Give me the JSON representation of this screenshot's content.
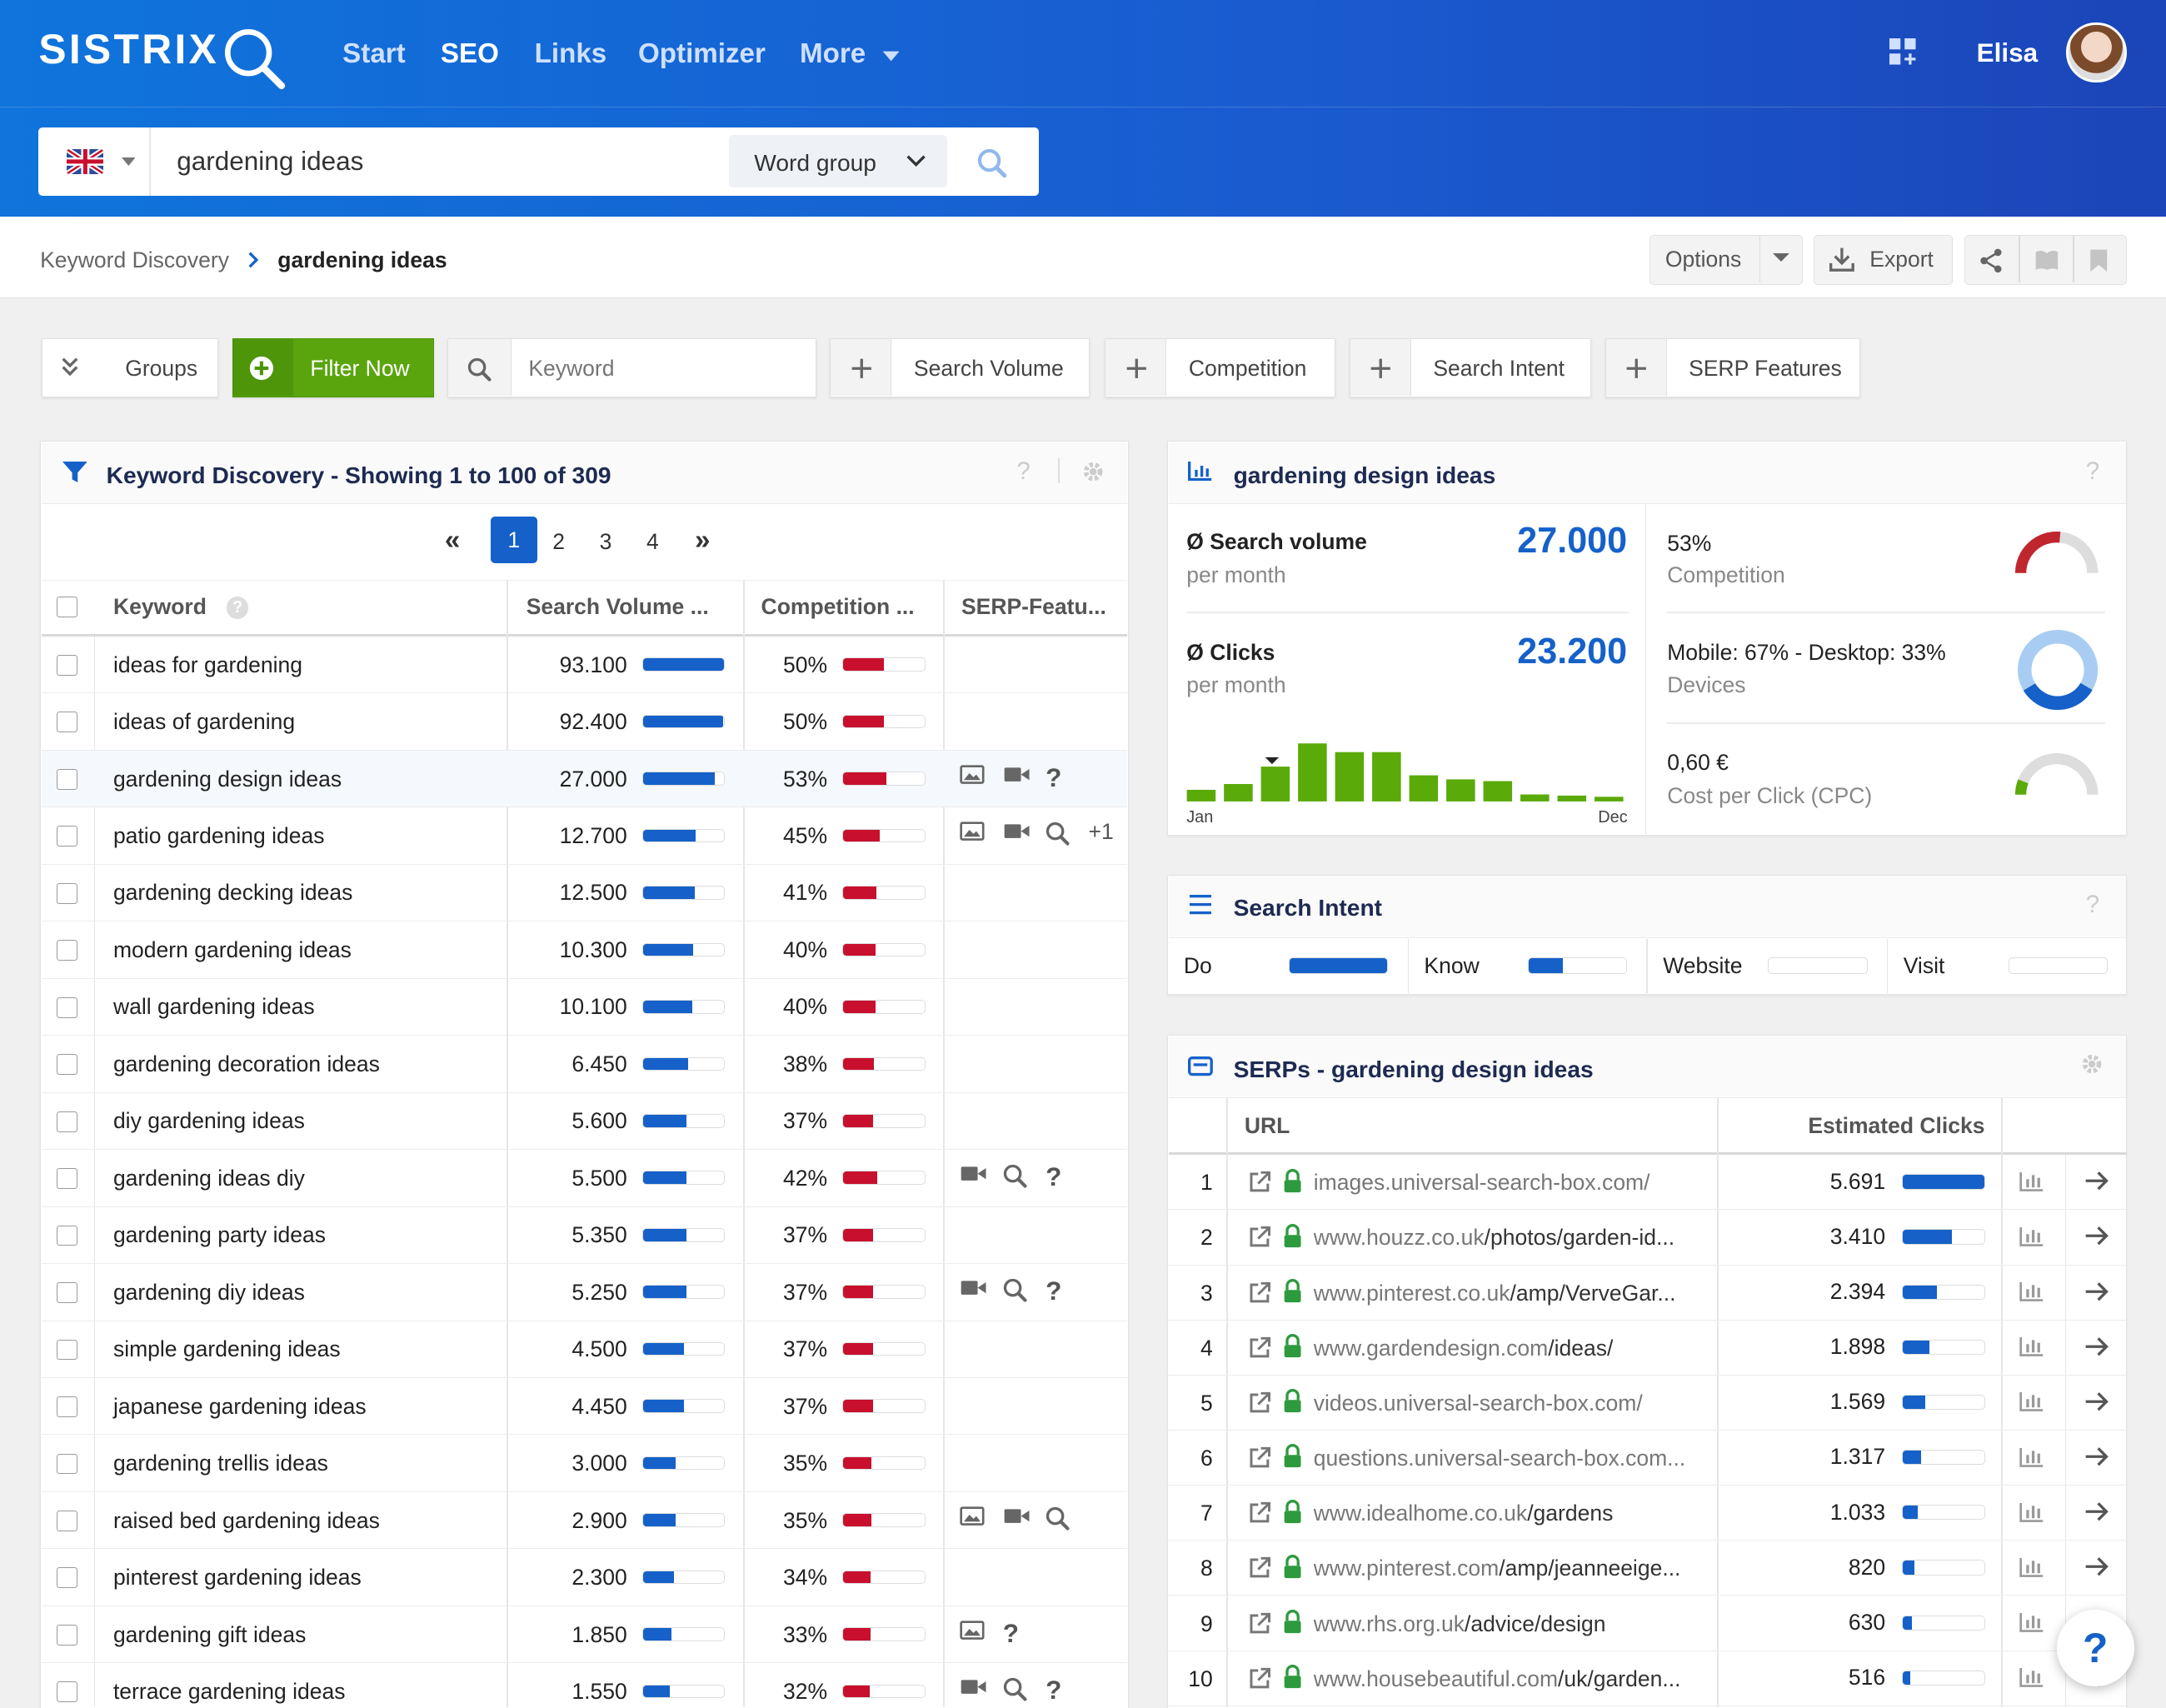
{
  "header": {
    "logo": "SISTRIX",
    "nav": [
      {
        "label": "Start"
      },
      {
        "label": "SEO"
      },
      {
        "label": "Links"
      },
      {
        "label": "Optimizer"
      },
      {
        "label": "More"
      }
    ],
    "user": "Elisa"
  },
  "search": {
    "query": "gardening ideas",
    "mode": "Word group"
  },
  "breadcrumb": {
    "root": "Keyword Discovery",
    "current": "gardening ideas"
  },
  "toolbar": {
    "options": "Options",
    "export": "Export"
  },
  "filters": {
    "groups": "Groups",
    "filter_now": "Filter Now",
    "keyword_placeholder": "Keyword",
    "search_volume": "Search Volume",
    "competition": "Competition",
    "search_intent": "Search Intent",
    "serp_features": "SERP Features"
  },
  "table": {
    "title": "Keyword Discovery - Showing 1 to 100 of 309",
    "pages": [
      "1",
      "2",
      "3",
      "4"
    ],
    "headers": {
      "keyword": "Keyword",
      "volume": "Search Volume ...",
      "competition": "Competition ...",
      "serp": "SERP-Featu..."
    },
    "rows": [
      {
        "keyword": "ideas for gardening",
        "volume": "93.100",
        "vol_pct": 100,
        "competition": "50%",
        "comp_pct": 50,
        "features": []
      },
      {
        "keyword": "ideas of gardening",
        "volume": "92.400",
        "vol_pct": 99,
        "competition": "50%",
        "comp_pct": 50,
        "features": []
      },
      {
        "keyword": "gardening design ideas",
        "volume": "27.000",
        "vol_pct": 88,
        "competition": "53%",
        "comp_pct": 53,
        "features": [
          "image",
          "video",
          "?"
        ]
      },
      {
        "keyword": "patio gardening ideas",
        "volume": "12.700",
        "vol_pct": 65,
        "competition": "45%",
        "comp_pct": 45,
        "features": [
          "image",
          "video",
          "search",
          "+1"
        ]
      },
      {
        "keyword": "gardening decking ideas",
        "volume": "12.500",
        "vol_pct": 64,
        "competition": "41%",
        "comp_pct": 41,
        "features": []
      },
      {
        "keyword": "modern gardening ideas",
        "volume": "10.300",
        "vol_pct": 62,
        "competition": "40%",
        "comp_pct": 40,
        "features": []
      },
      {
        "keyword": "wall gardening ideas",
        "volume": "10.100",
        "vol_pct": 61,
        "competition": "40%",
        "comp_pct": 40,
        "features": []
      },
      {
        "keyword": "gardening decoration ideas",
        "volume": "6.450",
        "vol_pct": 55,
        "competition": "38%",
        "comp_pct": 38,
        "features": []
      },
      {
        "keyword": "diy gardening ideas",
        "volume": "5.600",
        "vol_pct": 53,
        "competition": "37%",
        "comp_pct": 37,
        "features": []
      },
      {
        "keyword": "gardening ideas diy",
        "volume": "5.500",
        "vol_pct": 53,
        "competition": "42%",
        "comp_pct": 42,
        "features": [
          "video",
          "search",
          "?"
        ]
      },
      {
        "keyword": "gardening party ideas",
        "volume": "5.350",
        "vol_pct": 53,
        "competition": "37%",
        "comp_pct": 37,
        "features": []
      },
      {
        "keyword": "gardening diy ideas",
        "volume": "5.250",
        "vol_pct": 53,
        "competition": "37%",
        "comp_pct": 37,
        "features": [
          "video",
          "search",
          "?"
        ]
      },
      {
        "keyword": "simple gardening ideas",
        "volume": "4.500",
        "vol_pct": 50,
        "competition": "37%",
        "comp_pct": 37,
        "features": []
      },
      {
        "keyword": "japanese gardening ideas",
        "volume": "4.450",
        "vol_pct": 50,
        "competition": "37%",
        "comp_pct": 37,
        "features": []
      },
      {
        "keyword": "gardening trellis ideas",
        "volume": "3.000",
        "vol_pct": 40,
        "competition": "35%",
        "comp_pct": 35,
        "features": []
      },
      {
        "keyword": "raised bed gardening ideas",
        "volume": "2.900",
        "vol_pct": 40,
        "competition": "35%",
        "comp_pct": 35,
        "features": [
          "image",
          "video",
          "search"
        ]
      },
      {
        "keyword": "pinterest gardening ideas",
        "volume": "2.300",
        "vol_pct": 38,
        "competition": "34%",
        "comp_pct": 34,
        "features": []
      },
      {
        "keyword": "gardening gift ideas",
        "volume": "1.850",
        "vol_pct": 35,
        "competition": "33%",
        "comp_pct": 33,
        "features": [
          "image",
          "?"
        ]
      },
      {
        "keyword": "terrace gardening ideas",
        "volume": "1.550",
        "vol_pct": 33,
        "competition": "32%",
        "comp_pct": 32,
        "features": [
          "video",
          "search",
          "?"
        ]
      }
    ]
  },
  "overview": {
    "title": "gardening design ideas",
    "search_volume_label": "Search volume",
    "per_month": "per month",
    "search_volume": "27.000",
    "clicks_label": "Clicks",
    "clicks": "23.200",
    "months_start": "Jan",
    "months_end": "Dec",
    "monthly": [
      0.2,
      0.3,
      0.6,
      1.0,
      0.85,
      0.85,
      0.45,
      0.38,
      0.35,
      0.12,
      0.1,
      0.08
    ],
    "competition_value": "53%",
    "competition_label": "Competition",
    "competition_pct": 53,
    "devices_value": "Mobile: 67% - Desktop: 33%",
    "devices_label": "Devices",
    "mobile_pct": 67,
    "cpc_value": "0,60 €",
    "cpc_label": "Cost per Click (CPC)",
    "cpc_pct": 12
  },
  "intent": {
    "title": "Search Intent",
    "items": [
      {
        "label": "Do",
        "pct": 100
      },
      {
        "label": "Know",
        "pct": 35
      },
      {
        "label": "Website",
        "pct": 0
      },
      {
        "label": "Visit",
        "pct": 0
      }
    ]
  },
  "serps": {
    "title": "SERPs - gardening design ideas",
    "headers": {
      "url": "URL",
      "clicks": "Estimated Clicks"
    },
    "rows": [
      {
        "rank": "1",
        "domain": "images.universal-search-box.com/",
        "path": "",
        "clicks": "5.691",
        "pct": 100
      },
      {
        "rank": "2",
        "domain": "www.houzz.co.uk",
        "path": "/photos/garden-id...",
        "clicks": "3.410",
        "pct": 60
      },
      {
        "rank": "3",
        "domain": "www.pinterest.co.uk",
        "path": "/amp/VerveGar...",
        "clicks": "2.394",
        "pct": 42
      },
      {
        "rank": "4",
        "domain": "www.gardendesign.com",
        "path": "/ideas/",
        "clicks": "1.898",
        "pct": 33
      },
      {
        "rank": "5",
        "domain": "videos.universal-search-box.com/",
        "path": "",
        "clicks": "1.569",
        "pct": 28
      },
      {
        "rank": "6",
        "domain": "questions.universal-search-box.com...",
        "path": "",
        "clicks": "1.317",
        "pct": 23
      },
      {
        "rank": "7",
        "domain": "www.idealhome.co.uk",
        "path": "/gardens",
        "clicks": "1.033",
        "pct": 18
      },
      {
        "rank": "8",
        "domain": "www.pinterest.com",
        "path": "/amp/jeanneeige...",
        "clicks": "820",
        "pct": 14
      },
      {
        "rank": "9",
        "domain": "www.rhs.org.uk",
        "path": "/advice/design",
        "clicks": "630",
        "pct": 11
      },
      {
        "rank": "10",
        "domain": "www.housebeautiful.com",
        "path": "/uk/garden...",
        "clicks": "516",
        "pct": 9
      }
    ]
  },
  "colors": {
    "brand_blue": "#1561c9",
    "competition_red": "#c8102e",
    "filter_green": "#5aa50e",
    "chart_green": "#5aaa0a"
  }
}
